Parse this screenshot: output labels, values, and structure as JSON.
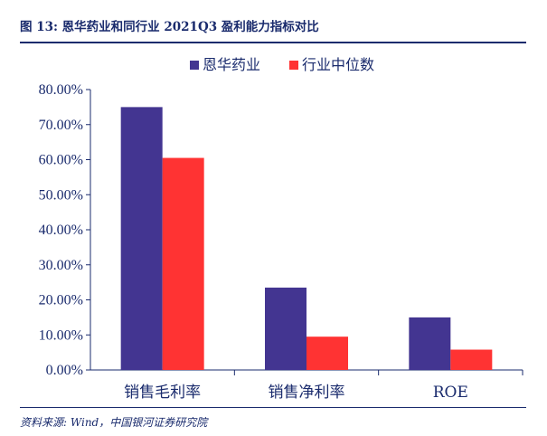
{
  "header": {
    "title": "图 13:  恩华药业和同行业 2021Q3 盈利能力指标对比"
  },
  "footer": {
    "source": "资料来源:  Wind，中国银河证券研究院"
  },
  "colors": {
    "series1": "#433591",
    "series2": "#ff3333",
    "text": "#1a2b6d"
  },
  "chart_data": {
    "type": "bar",
    "title": "恩华药业和同行业 2021Q3 盈利能力指标对比",
    "categories": [
      "销售毛利率",
      "销售净利率",
      "ROE"
    ],
    "series": [
      {
        "name": "恩华药业",
        "values": [
          75.0,
          23.5,
          15.0
        ]
      },
      {
        "name": "行业中位数",
        "values": [
          60.5,
          9.5,
          5.8
        ]
      }
    ],
    "yticks": [
      "0.00%",
      "10.00%",
      "20.00%",
      "30.00%",
      "40.00%",
      "50.00%",
      "60.00%",
      "70.00%",
      "80.00%"
    ],
    "ylim": [
      0,
      80
    ],
    "legend": "top-center",
    "grid": false
  }
}
